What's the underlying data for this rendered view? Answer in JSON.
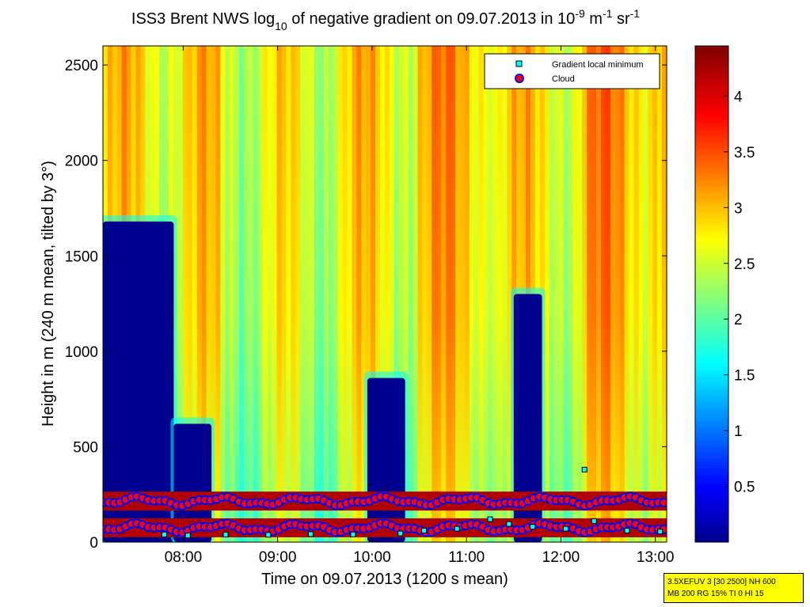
{
  "chart_data": {
    "type": "heatmap",
    "title_parts": {
      "prefix": "ISS3 Brent NWS log",
      "sub": "10",
      "mid": " of negative gradient on 09.07.2013 in 10",
      "sup1": "-9",
      "mid2": " m",
      "sup2": "-1",
      "mid3": " sr",
      "sup3": "-1"
    },
    "xlabel": "Time on 09.07.2013 (1200 s mean)",
    "ylabel": "Height in m (240 m mean, tilted by 3°)",
    "x_range_hours": [
      7.15,
      13.12
    ],
    "xlim": [
      "07:09",
      "13:07"
    ],
    "x_ticks": [
      {
        "hour": 8,
        "label": "08:00"
      },
      {
        "hour": 9,
        "label": "09:00"
      },
      {
        "hour": 10,
        "label": "10:00"
      },
      {
        "hour": 11,
        "label": "11:00"
      },
      {
        "hour": 12,
        "label": "12:00"
      },
      {
        "hour": 13,
        "label": "13:00"
      }
    ],
    "ylim": [
      0,
      2600
    ],
    "y_ticks": [
      {
        "value": 0,
        "label": "0"
      },
      {
        "value": 500,
        "label": "500"
      },
      {
        "value": 1000,
        "label": "1000"
      },
      {
        "value": 1500,
        "label": "1500"
      },
      {
        "value": 2000,
        "label": "2000"
      },
      {
        "value": 2500,
        "label": "2500"
      }
    ],
    "colorbar": {
      "range": [
        0,
        4.45
      ],
      "colormap": "jet",
      "ticks": [
        {
          "value": 0.5,
          "label": "0.5"
        },
        {
          "value": 1,
          "label": "1"
        },
        {
          "value": 1.5,
          "label": "1.5"
        },
        {
          "value": 2,
          "label": "2"
        },
        {
          "value": 2.5,
          "label": "2.5"
        },
        {
          "value": 3,
          "label": "3"
        },
        {
          "value": 3.5,
          "label": "3.5"
        },
        {
          "value": 4,
          "label": "4"
        }
      ]
    },
    "legend": {
      "placement": "top-right",
      "entries": [
        {
          "label": "Gradient local minimum",
          "marker": "square",
          "color": "#00ffff",
          "edge": "#000000"
        },
        {
          "label": "Cloud",
          "marker": "circle",
          "color": "#ff0000",
          "edge": "#0000ff"
        }
      ]
    },
    "clear_regions": [
      {
        "t0": 7.15,
        "t1": 7.9,
        "top_height": 1680
      },
      {
        "t0": 7.9,
        "t1": 8.3,
        "top_height": 620
      },
      {
        "t0": 9.95,
        "t1": 10.35,
        "top_height": 860
      },
      {
        "t0": 11.5,
        "t1": 11.8,
        "top_height": 1300
      }
    ],
    "cloud_layers": [
      {
        "name": "upper",
        "t0": 7.15,
        "t1": 13.12,
        "height": 215
      },
      {
        "name": "lower",
        "t0": 7.15,
        "t1": 13.12,
        "height": 75
      }
    ],
    "gradient_minima": [
      {
        "time": 7.8,
        "height": 40
      },
      {
        "time": 8.05,
        "height": 35
      },
      {
        "time": 8.45,
        "height": 40
      },
      {
        "time": 8.9,
        "height": 38
      },
      {
        "time": 9.35,
        "height": 42
      },
      {
        "time": 9.8,
        "height": 40
      },
      {
        "time": 10.3,
        "height": 45
      },
      {
        "time": 10.55,
        "height": 60
      },
      {
        "time": 10.9,
        "height": 70
      },
      {
        "time": 11.25,
        "height": 120
      },
      {
        "time": 11.45,
        "height": 95
      },
      {
        "time": 11.7,
        "height": 80
      },
      {
        "time": 12.05,
        "height": 70
      },
      {
        "time": 12.25,
        "height": 380
      },
      {
        "time": 12.35,
        "height": 110
      },
      {
        "time": 12.7,
        "height": 60
      },
      {
        "time": 13.05,
        "height": 55
      }
    ]
  },
  "info_box": {
    "line1": "3.5XEFUV 3 [30 2500] NH 600",
    "line2": "MB 200 RG 15% TI 0 HI 15"
  }
}
